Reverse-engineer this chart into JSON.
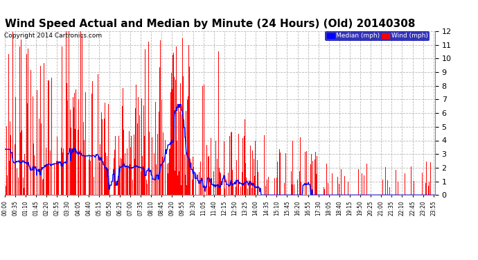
{
  "title": "Wind Speed Actual and Median by Minute (24 Hours) (Old) 20140308",
  "copyright": "Copyright 2014 Cartronics.com",
  "ylim": [
    0.0,
    12.0
  ],
  "yticks": [
    0.0,
    1.0,
    2.0,
    3.0,
    4.0,
    5.0,
    6.0,
    7.0,
    8.0,
    9.0,
    10.0,
    11.0,
    12.0
  ],
  "bg_color": "#ffffff",
  "plot_bg_color": "#ffffff",
  "grid_color": "#b0b0b0",
  "wind_color": "#ff0000",
  "median_color": "#0000ff",
  "title_fontsize": 11,
  "legend_median_label": "Median (mph)",
  "legend_wind_label": "Wind (mph)",
  "total_minutes": 1440
}
